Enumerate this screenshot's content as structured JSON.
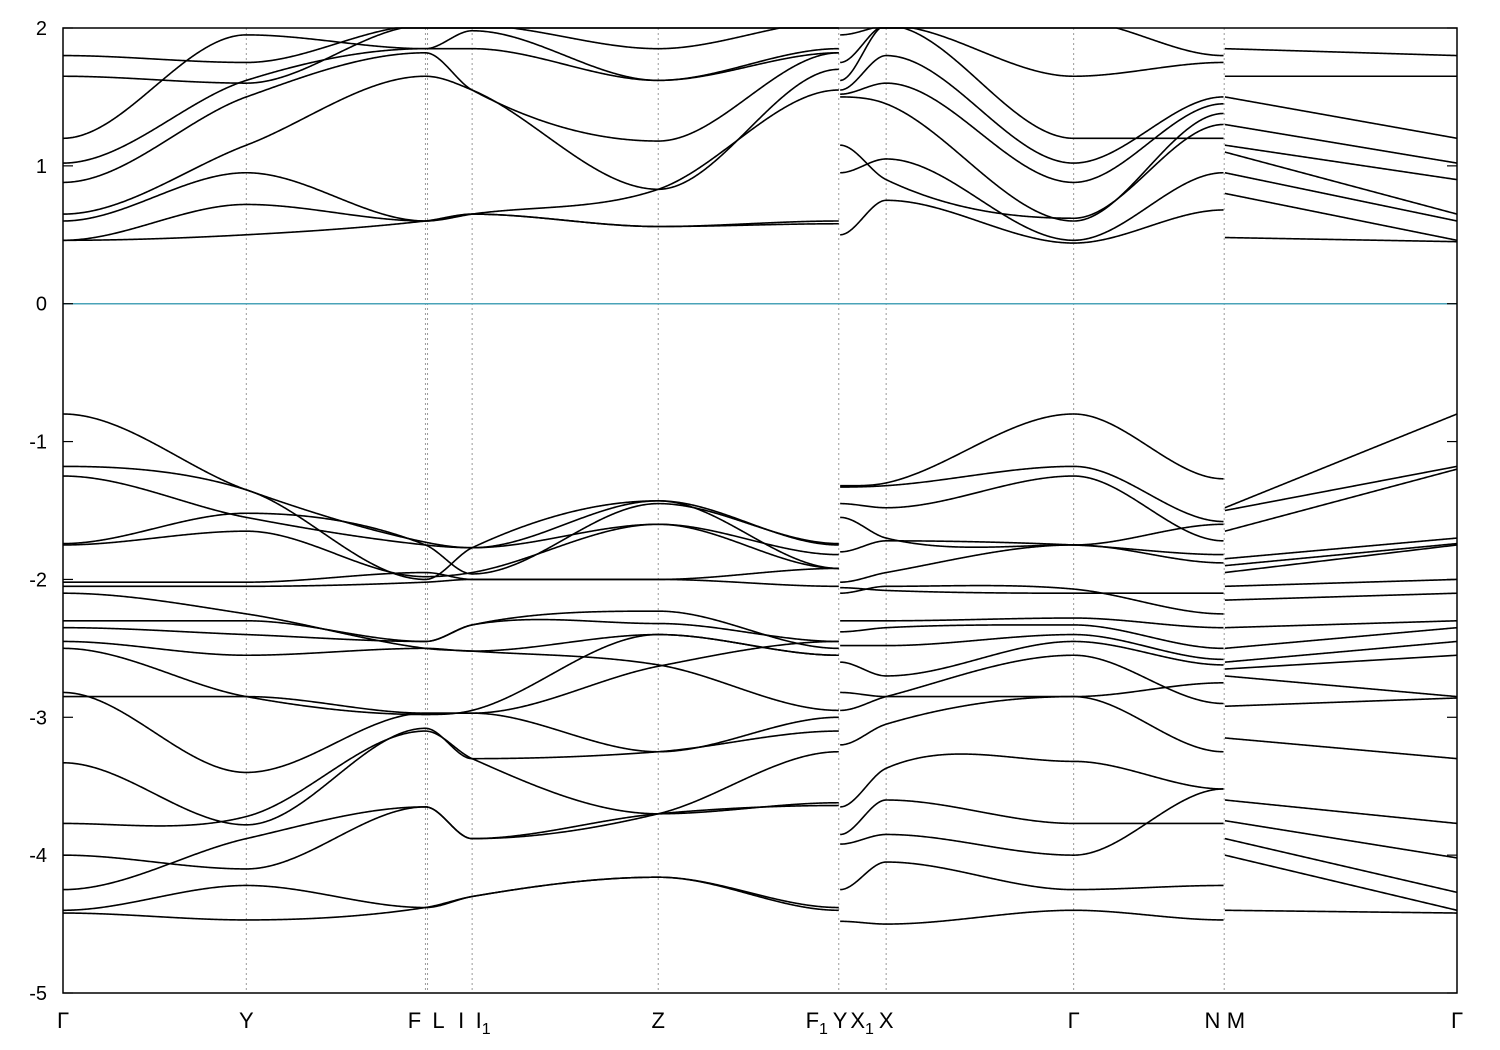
{
  "chart_data": {
    "type": "line",
    "title": "",
    "xlabel": "",
    "ylabel": "",
    "ylim": [
      -5,
      2
    ],
    "yticks": [
      -5,
      -4,
      -3,
      -2,
      -1,
      0,
      1,
      2
    ],
    "fermi_level": 0,
    "fermi_color": "#4aa3b8",
    "band_color": "#000000",
    "grid_color": "#9a9a9a",
    "kpoint_labels": [
      {
        "label": "Γ",
        "sub": "",
        "x": 0
      },
      {
        "label": "Y",
        "sub": "",
        "x": 0.1315
      },
      {
        "label": "F",
        "sub": "",
        "x": 0.26
      },
      {
        "label": "L",
        "sub": "",
        "x": 0.2615
      },
      {
        "label": "I",
        "sub": "",
        "x": 0.2935
      },
      {
        "label": "I",
        "sub": "1",
        "x": 0.2935
      },
      {
        "label": "Z",
        "sub": "",
        "x": 0.427
      },
      {
        "label": "F",
        "sub": "1",
        "x": 0.5565
      },
      {
        "label": "Y",
        "sub": "",
        "x": 0.5575
      },
      {
        "label": "X",
        "sub": "1",
        "x": 0.5575
      },
      {
        "label": "X",
        "sub": "",
        "x": 0.5905
      },
      {
        "label": "Γ",
        "sub": "",
        "x": 0.725
      },
      {
        "label": "N",
        "sub": "",
        "x": 0.8325
      },
      {
        "label": "M",
        "sub": "",
        "x": 0.8335
      },
      {
        "label": "Γ",
        "sub": "",
        "x": 1
      }
    ],
    "vertical_lines": [
      0.1315,
      0.26,
      0.2615,
      0.2935,
      0.427,
      0.5565,
      0.5905,
      0.725,
      0.833
    ],
    "segments": [
      {
        "x_range": [
          0,
          0.5565
        ],
        "knots": [
          0,
          0.1315,
          0.26,
          0.2935,
          0.427,
          0.5565
        ],
        "bands": [
          [
            -4.42,
            -4.47,
            -4.38,
            -4.3,
            -4.16,
            -4.4
          ],
          [
            -4.4,
            -4.22,
            -4.38,
            -4.3,
            -4.16,
            -4.38
          ],
          [
            -4.25,
            -3.88,
            -3.65,
            -3.88,
            -3.7,
            -3.64
          ],
          [
            -4.0,
            -4.1,
            -3.65,
            -3.88,
            -3.7,
            -3.25
          ],
          [
            -3.77,
            -3.72,
            -3.1,
            -3.3,
            -3.7,
            -3.62
          ],
          [
            -3.33,
            -3.78,
            -3.08,
            -3.3,
            -3.25,
            -3.1
          ],
          [
            -2.85,
            -2.85,
            -2.97,
            -2.97,
            -3.25,
            -3.0
          ],
          [
            -2.82,
            -3.4,
            -2.97,
            -2.97,
            -2.63,
            -2.45
          ],
          [
            -2.5,
            -2.85,
            -2.98,
            -2.95,
            -2.4,
            -2.55
          ],
          [
            -2.45,
            -2.55,
            -2.5,
            -2.52,
            -2.4,
            -2.55
          ],
          [
            -2.35,
            -2.4,
            -2.45,
            -2.33,
            -2.23,
            -2.5
          ],
          [
            -2.3,
            -2.3,
            -2.45,
            -2.33,
            -2.32,
            -2.45
          ],
          [
            -2.1,
            -2.25,
            -2.5,
            -2.52,
            -2.62,
            -2.95
          ],
          [
            -2.05,
            -2.05,
            -2.02,
            -2.0,
            -2.0,
            -1.92
          ],
          [
            -2.02,
            -2.02,
            -1.95,
            -2.0,
            -2.0,
            -2.05
          ],
          [
            -1.75,
            -1.65,
            -1.98,
            -1.95,
            -1.6,
            -1.92
          ],
          [
            -1.74,
            -1.52,
            -1.75,
            -1.96,
            -1.45,
            -1.74
          ],
          [
            -1.25,
            -1.55,
            -1.75,
            -1.77,
            -1.6,
            -1.82
          ],
          [
            -1.18,
            -1.35,
            -2.0,
            -1.77,
            -1.43,
            -1.92
          ],
          [
            -0.8,
            -1.35,
            -1.73,
            -1.77,
            -1.43,
            -1.75
          ],
          [
            0.46,
            0.5,
            0.6,
            0.65,
            0.56,
            0.6
          ],
          [
            0.46,
            0.72,
            0.6,
            0.65,
            0.56,
            0.58
          ],
          [
            0.6,
            0.95,
            0.6,
            0.65,
            0.83,
            1.55
          ],
          [
            0.65,
            1.15,
            1.65,
            1.55,
            0.83,
            1.7
          ],
          [
            0.88,
            1.5,
            1.82,
            1.55,
            1.18,
            1.82
          ],
          [
            1.02,
            1.62,
            1.85,
            1.85,
            1.62,
            1.82
          ],
          [
            1.2,
            1.95,
            1.85,
            1.98,
            1.62,
            1.85
          ],
          [
            1.65,
            1.6,
            2.02,
            2.02,
            1.85,
            2.05
          ],
          [
            1.8,
            1.75,
            2.02,
            2.02,
            2.05,
            2.05
          ]
        ]
      },
      {
        "x_range": [
          0.5575,
          0.8325
        ],
        "knots": [
          0.5575,
          0.5905,
          0.725,
          0.8325
        ],
        "bands": [
          [
            -4.48,
            -4.5,
            -4.4,
            -4.47
          ],
          [
            -4.25,
            -4.05,
            -4.25,
            -4.22
          ],
          [
            -3.92,
            -3.85,
            -4.0,
            -3.52
          ],
          [
            -3.85,
            -3.6,
            -3.77,
            -3.77
          ],
          [
            -3.65,
            -3.37,
            -3.32,
            -3.52
          ],
          [
            -3.2,
            -3.05,
            -2.85,
            -3.25
          ],
          [
            -2.95,
            -2.85,
            -2.55,
            -2.9
          ],
          [
            -2.82,
            -2.85,
            -2.85,
            -2.75
          ],
          [
            -2.6,
            -2.7,
            -2.45,
            -2.62
          ],
          [
            -2.48,
            -2.48,
            -2.4,
            -2.58
          ],
          [
            -2.38,
            -2.35,
            -2.33,
            -2.5
          ],
          [
            -2.3,
            -2.3,
            -2.28,
            -2.35
          ],
          [
            -2.1,
            -2.05,
            -2.07,
            -2.25
          ],
          [
            -2.06,
            -2.08,
            -2.1,
            -2.1
          ],
          [
            -2.02,
            -1.95,
            -1.75,
            -1.88
          ],
          [
            -1.8,
            -1.72,
            -1.75,
            -1.82
          ],
          [
            -1.55,
            -1.7,
            -1.75,
            -1.6
          ],
          [
            -1.45,
            -1.48,
            -1.25,
            -1.72
          ],
          [
            -1.33,
            -1.32,
            -1.18,
            -1.58
          ],
          [
            -1.32,
            -1.3,
            -0.8,
            -1.27
          ],
          [
            0.5,
            0.75,
            0.44,
            0.68
          ],
          [
            0.95,
            1.05,
            0.46,
            0.95
          ],
          [
            1.15,
            0.9,
            0.62,
            1.3
          ],
          [
            1.5,
            1.45,
            0.6,
            1.38
          ],
          [
            1.52,
            1.6,
            0.88,
            1.45
          ],
          [
            1.55,
            1.8,
            1.02,
            1.5
          ],
          [
            1.62,
            2.02,
            1.2,
            1.2
          ],
          [
            1.75,
            2.02,
            1.65,
            1.75
          ],
          [
            1.95,
            2.02,
            2.05,
            1.8
          ]
        ]
      },
      {
        "x_range": [
          0.8335,
          1
        ],
        "knots": [
          0.8335,
          1
        ],
        "bands": [
          [
            -4.4,
            -4.42
          ],
          [
            -4.0,
            -4.4
          ],
          [
            -3.88,
            -4.27
          ],
          [
            -3.75,
            -4.02
          ],
          [
            -3.6,
            -3.77
          ],
          [
            -3.15,
            -3.3
          ],
          [
            -2.92,
            -2.86
          ],
          [
            -2.7,
            -2.85
          ],
          [
            -2.65,
            -2.55
          ],
          [
            -2.6,
            -2.45
          ],
          [
            -2.5,
            -2.35
          ],
          [
            -2.35,
            -2.3
          ],
          [
            -2.15,
            -2.1
          ],
          [
            -2.05,
            -2.0
          ],
          [
            -1.95,
            -1.75
          ],
          [
            -1.9,
            -1.74
          ],
          [
            -1.85,
            -1.7
          ],
          [
            -1.65,
            -1.2
          ],
          [
            -1.5,
            -1.18
          ],
          [
            -1.48,
            -0.8
          ],
          [
            0.48,
            0.45
          ],
          [
            0.8,
            0.46
          ],
          [
            0.95,
            0.6
          ],
          [
            1.1,
            0.65
          ],
          [
            1.15,
            0.9
          ],
          [
            1.3,
            1.02
          ],
          [
            1.5,
            1.2
          ],
          [
            1.65,
            1.65
          ],
          [
            1.85,
            1.8
          ]
        ]
      }
    ]
  }
}
